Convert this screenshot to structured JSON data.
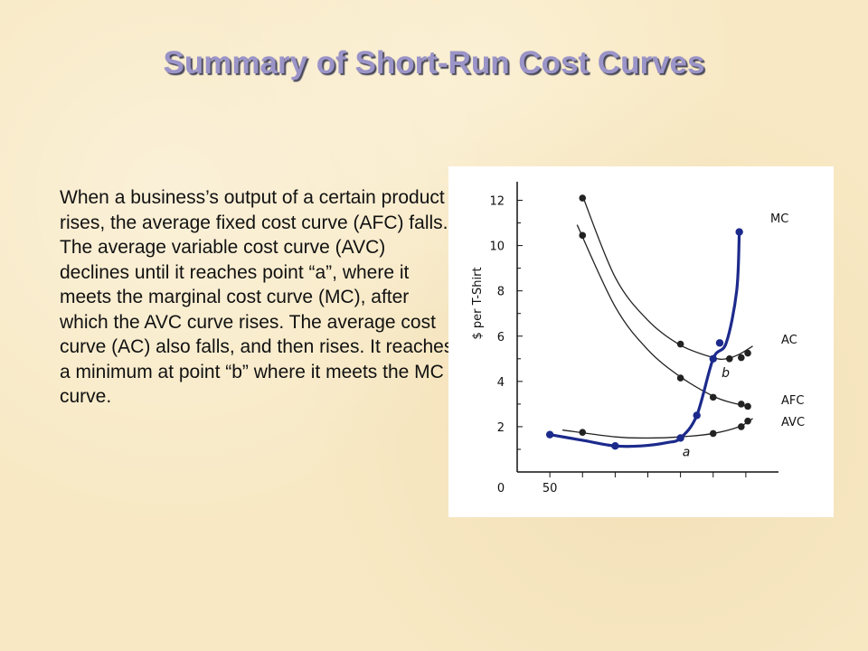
{
  "slide": {
    "title": "Summary of Short-Run Cost Curves",
    "body": "When a business’s output of a certain product rises, the average fixed cost curve (AFC) falls.  The average variable cost curve (AVC) declines until it reaches point “a”, where it meets the marginal cost curve (MC), after which the AVC curve rises.  The average cost curve (AC) also falls, and then rises.  It reaches a minimum at point “b” where it meets the MC curve."
  },
  "chart_data": {
    "type": "line",
    "title": "",
    "xlabel": "",
    "ylabel": "$ per T-Shirt",
    "xlim": [
      0,
      400
    ],
    "ylim": [
      0,
      12.5
    ],
    "y_ticks": [
      0,
      2,
      4,
      6,
      8,
      10,
      12
    ],
    "x_tick_labels": [
      {
        "x": 0,
        "label": "0"
      },
      {
        "x": 50,
        "label": "50"
      }
    ],
    "x_ticks_unlabeled": [
      100,
      150,
      200,
      250,
      300,
      350
    ],
    "series": [
      {
        "name": "AC",
        "color": "#222222",
        "thickness": "thin",
        "curve": [
          [
            100,
            12.2
          ],
          [
            150,
            8.6
          ],
          [
            200,
            6.7
          ],
          [
            250,
            5.6
          ],
          [
            300,
            5.05
          ],
          [
            320,
            5.0
          ],
          [
            340,
            5.2
          ],
          [
            360,
            5.55
          ]
        ],
        "points": [
          [
            100,
            12.1
          ],
          [
            250,
            5.65
          ],
          [
            325,
            5.0
          ],
          [
            343,
            5.05
          ],
          [
            353,
            5.25
          ]
        ]
      },
      {
        "name": "AFC",
        "color": "#222222",
        "thickness": "thin",
        "curve": [
          [
            92,
            10.9
          ],
          [
            150,
            7.3
          ],
          [
            200,
            5.4
          ],
          [
            250,
            4.2
          ],
          [
            300,
            3.35
          ],
          [
            330,
            3.05
          ],
          [
            355,
            2.9
          ]
        ],
        "points": [
          [
            100,
            10.45
          ],
          [
            250,
            4.15
          ],
          [
            300,
            3.3
          ],
          [
            343,
            3.0
          ],
          [
            353,
            2.9
          ]
        ]
      },
      {
        "name": "AVC",
        "color": "#222222",
        "thickness": "thin",
        "curve": [
          [
            70,
            1.85
          ],
          [
            150,
            1.55
          ],
          [
            200,
            1.5
          ],
          [
            250,
            1.55
          ],
          [
            300,
            1.7
          ],
          [
            340,
            2.0
          ],
          [
            360,
            2.35
          ]
        ],
        "points": [
          [
            100,
            1.75
          ],
          [
            250,
            1.5
          ],
          [
            300,
            1.7
          ],
          [
            343,
            2.0
          ],
          [
            353,
            2.25
          ]
        ]
      },
      {
        "name": "MC",
        "color": "#1c2a8c",
        "thickness": "thick",
        "curve": [
          [
            50,
            1.65
          ],
          [
            100,
            1.4
          ],
          [
            150,
            1.15
          ],
          [
            190,
            1.15
          ],
          [
            230,
            1.3
          ],
          [
            250,
            1.5
          ],
          [
            275,
            2.5
          ],
          [
            300,
            5.0
          ],
          [
            320,
            5.7
          ],
          [
            336,
            8.0
          ],
          [
            340,
            10.6
          ]
        ],
        "points": [
          [
            50,
            1.65
          ],
          [
            150,
            1.15
          ],
          [
            250,
            1.5
          ],
          [
            275,
            2.5
          ],
          [
            300,
            5.0
          ],
          [
            310,
            5.7
          ],
          [
            340,
            10.6
          ]
        ]
      }
    ],
    "point_labels": [
      {
        "label": "a",
        "x": 253,
        "y": 0.7
      },
      {
        "label": "b",
        "x": 313,
        "y": 4.2
      }
    ]
  }
}
